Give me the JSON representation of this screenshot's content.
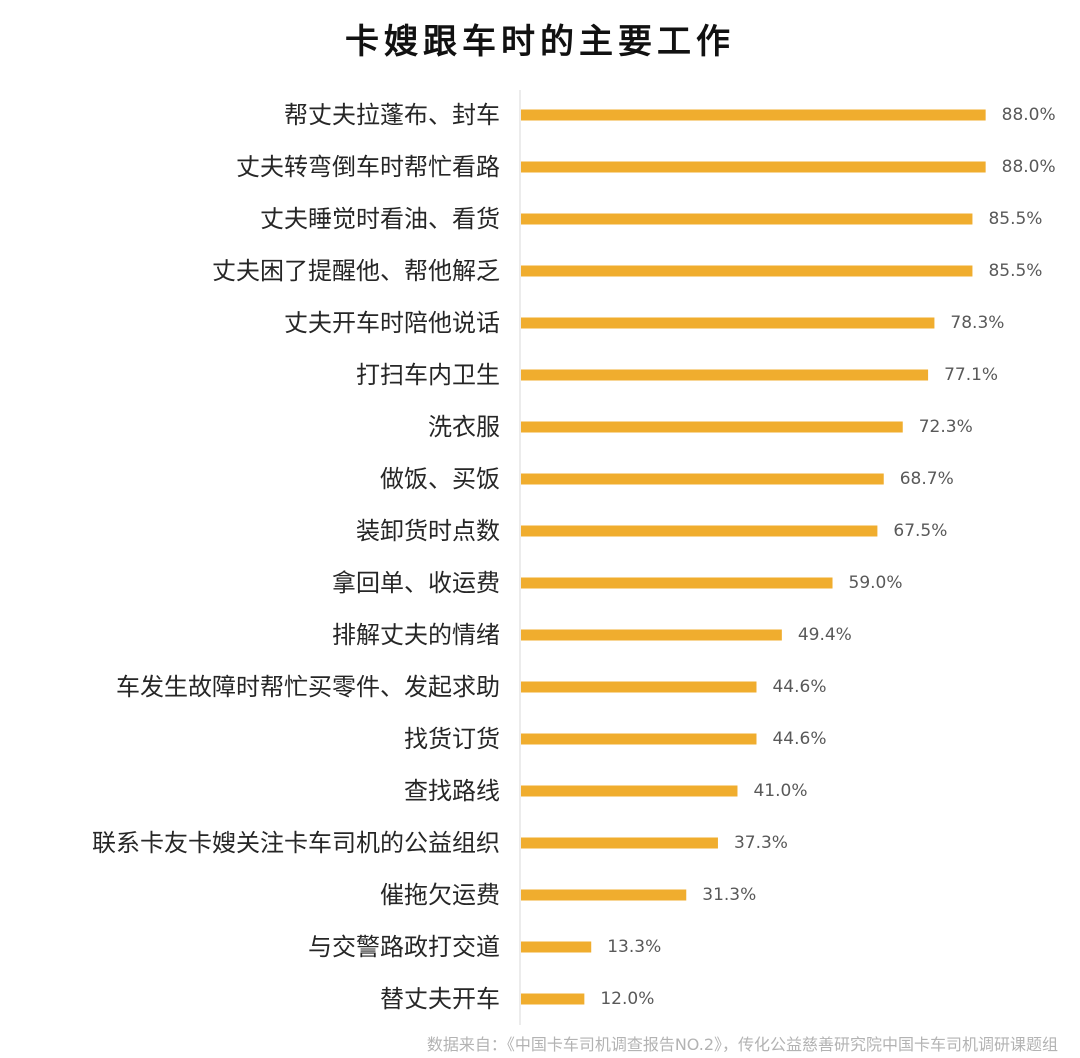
{
  "chart_data": {
    "type": "bar",
    "orientation": "horizontal",
    "title": "卡嫂跟车时的主要工作",
    "categories": [
      "帮丈夫拉蓬布、封车",
      "丈夫转弯倒车时帮忙看路",
      "丈夫睡觉时看油、看货",
      "丈夫困了提醒他、帮他解乏",
      "丈夫开车时陪他说话",
      "打扫车内卫生",
      "洗衣服",
      "做饭、买饭",
      "装卸货时点数",
      "拿回单、收运费",
      "排解丈夫的情绪",
      "车发生故障时帮忙买零件、发起求助",
      "找货订货",
      "查找路线",
      "联系卡友卡嫂关注卡车司机的公益组织",
      "催拖欠运费",
      "与交警路政打交道",
      "替丈夫开车"
    ],
    "values": [
      88.0,
      88.0,
      85.5,
      85.5,
      78.3,
      77.1,
      72.3,
      68.7,
      67.5,
      59.0,
      49.4,
      44.6,
      44.6,
      41.0,
      37.3,
      31.3,
      13.3,
      12.0
    ],
    "value_labels": [
      "88.0%",
      "88.0%",
      "85.5%",
      "85.5%",
      "78.3%",
      "77.1%",
      "72.3%",
      "68.7%",
      "67.5%",
      "59.0%",
      "49.4%",
      "44.6%",
      "44.6%",
      "41.0%",
      "37.3%",
      "31.3%",
      "13.3%",
      "12.0%"
    ],
    "unit": "%",
    "bar_color": "#F0AD2E",
    "axis_color": "#D9D9D9",
    "grid": false,
    "legend": "none",
    "source": "数据来自：《中国卡车司机调查报告NO.2》，传化公益慈善研究院中国卡车司机调研课题组"
  }
}
